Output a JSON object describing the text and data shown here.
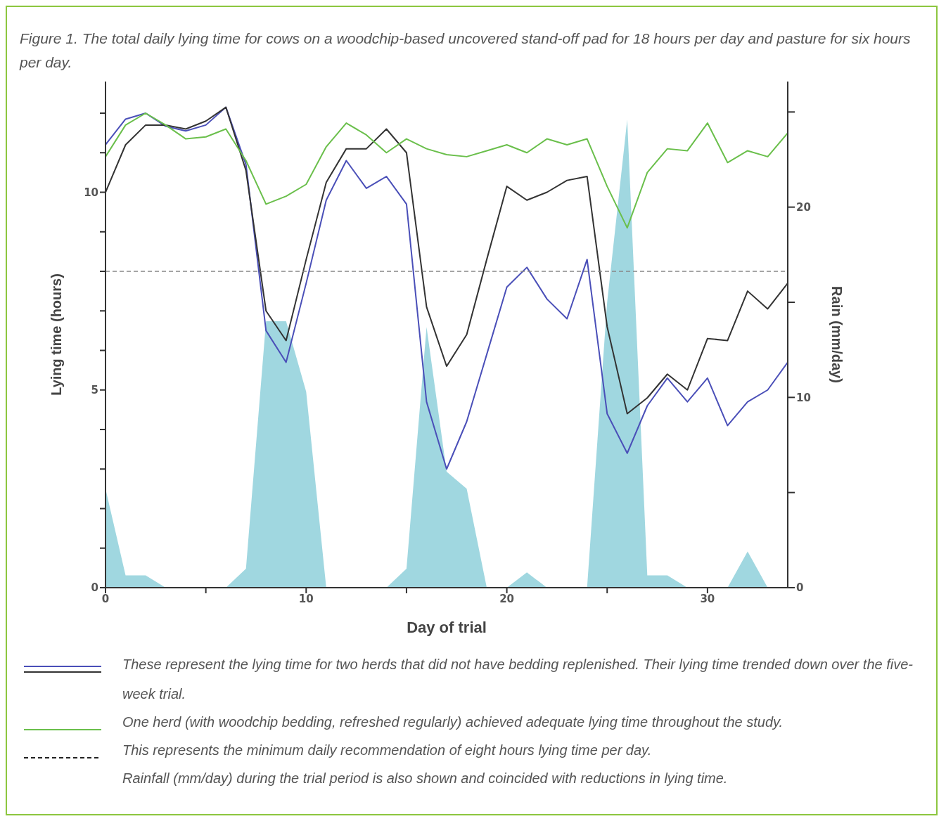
{
  "chart_data": {
    "type": "line",
    "title": "Figure 1. The total daily lying time for cows on a woodchip-based uncovered stand-off pad for 18 hours per day and pasture for six hours per day.",
    "xlabel": "Day of trial",
    "ylabel": "Lying time (hours)",
    "y2label": "Rain (mm/day)",
    "x": [
      0,
      1,
      2,
      3,
      4,
      5,
      6,
      7,
      8,
      9,
      10,
      11,
      12,
      13,
      14,
      15,
      16,
      17,
      18,
      19,
      20,
      21,
      22,
      23,
      24,
      25,
      26,
      27,
      28,
      29,
      30,
      31,
      32,
      33,
      34
    ],
    "series": [
      {
        "type": "area",
        "axis": "y2",
        "color": "#8fd0da",
        "values": [
          5.2,
          0.65,
          0.65,
          0,
          0,
          0,
          0,
          1.0,
          14,
          14,
          10.3,
          0,
          0,
          0,
          0,
          1.0,
          13.7,
          6.1,
          5.2,
          0,
          0,
          0.8,
          0,
          0,
          0,
          15,
          24.6,
          0.65,
          0.65,
          0,
          0,
          0,
          1.9,
          0,
          0
        ]
      },
      {
        "color": "#4a4fb8",
        "values": [
          11.2,
          11.85,
          12.0,
          11.67,
          11.55,
          11.7,
          12.15,
          10.7,
          6.5,
          5.7,
          7.7,
          9.8,
          10.8,
          10.1,
          10.4,
          9.7,
          4.7,
          3.0,
          4.2,
          5.9,
          7.6,
          8.1,
          7.3,
          6.8,
          8.3,
          4.4,
          3.4,
          4.6,
          5.3,
          4.7,
          5.3,
          4.1,
          4.7,
          5.0,
          5.7
        ]
      },
      {
        "color": "#333333",
        "values": [
          10.0,
          11.2,
          11.7,
          11.7,
          11.6,
          11.8,
          12.15,
          10.55,
          7.0,
          6.25,
          8.3,
          10.25,
          11.1,
          11.1,
          11.6,
          11.0,
          7.1,
          5.6,
          6.4,
          8.3,
          10.15,
          9.8,
          10.0,
          10.3,
          10.4,
          6.6,
          4.4,
          4.8,
          5.4,
          5.0,
          6.3,
          6.25,
          7.5,
          7.05,
          7.7
        ]
      },
      {
        "color": "#6abf4b",
        "values": [
          10.9,
          11.7,
          12.0,
          11.7,
          11.35,
          11.4,
          11.6,
          10.8,
          9.7,
          9.9,
          10.2,
          11.15,
          11.75,
          11.45,
          11.0,
          11.35,
          11.1,
          10.95,
          10.9,
          11.05,
          11.2,
          11.0,
          11.35,
          11.2,
          11.35,
          10.15,
          9.1,
          10.5,
          11.1,
          11.05,
          11.75,
          10.75,
          11.05,
          10.9,
          11.5
        ]
      }
    ],
    "xlim": [
      0,
      34
    ],
    "xticks": [
      0,
      {
        "value": 5,
        "label": null
      },
      10,
      {
        "value": 15,
        "label": null
      },
      20,
      {
        "value": 25,
        "label": null
      },
      30
    ],
    "ylim": [
      0,
      12.8
    ],
    "yticks": [
      0,
      {
        "value": 1,
        "label": null
      },
      {
        "value": 2,
        "label": null
      },
      {
        "value": 3,
        "label": null
      },
      {
        "value": 4,
        "label": null
      },
      5,
      {
        "value": 6,
        "label": null
      },
      {
        "value": 7,
        "label": null
      },
      {
        "value": 8,
        "label": null
      },
      {
        "value": 9,
        "label": null
      },
      10,
      {
        "value": 11,
        "label": null
      },
      {
        "value": 12,
        "label": null
      }
    ],
    "y2lim": [
      0,
      26.6
    ],
    "y2ticks": [
      0,
      {
        "value": 5,
        "label": null
      },
      10,
      {
        "value": 15,
        "label": null
      },
      20,
      {
        "value": 25,
        "label": null
      }
    ],
    "ref_lines": [
      {
        "axis": "y",
        "value": 8,
        "color": "#888888",
        "line_style": "dashed"
      }
    ],
    "grid": false,
    "legend": false,
    "marker": "none",
    "line_style": "solid",
    "annotations": [
      "These represent the lying time for two herds that did not have bedding replenished. Their lying time trended down over the five-week trial.",
      "One herd (with woodchip bedding, refreshed regularly) achieved adequate lying time throughout the study.",
      "This represents the minimum daily recommendation of eight hours lying time per day.",
      "Rainfall (mm/day) during the trial period is also shown and coincided with reductions in lying time."
    ]
  }
}
